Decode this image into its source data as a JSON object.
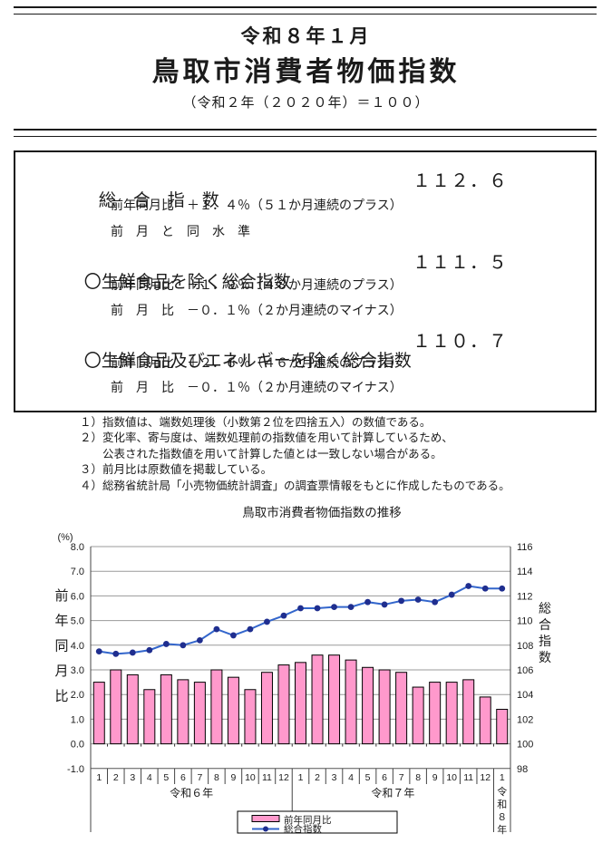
{
  "header": {
    "date_title": "令和８年１月",
    "main_title": "鳥取市消費者物価指数",
    "base_note": "（令和２年（２０２０年）＝１００）"
  },
  "summary": {
    "items": [
      {
        "name": "総　合　指　数",
        "value": "１１２．６",
        "lines": [
          "前年同月比　＋１．４％（５１か月連続のプラス）",
          "前　月　と　同　水　準"
        ]
      },
      {
        "name": "〇生鮮食品を除く総合指数",
        "value": "１１１．５",
        "lines": [
          "前年同月比　＋１．９％（４８か月連続のプラス）",
          "前　月　比　－０．１％（２か月連続のマイナス）"
        ]
      },
      {
        "name": "〇生鮮食品及びエネルギーを除く総合指数",
        "value": "１１０．７",
        "lines": [
          "前年同月比　＋２．６％（４６か月連続のプラス）",
          "前　月　比　－０．１％（２か月連続のマイナス）"
        ]
      }
    ]
  },
  "notes": [
    "１）指数値は、端数処理後（小数第２位を四捨五入）の数値である。",
    "２）変化率、寄与度は、端数処理前の指数値を用いて計算しているため、",
    "　　公表された指数値を用いて計算した値とは一致しない場合がある。",
    "３）前月比は原数値を掲載している。",
    "４）総務省統計局「小売物価統計調査」の調査票情報をもとに作成したものである。"
  ],
  "chart_data": {
    "type": "bar+line",
    "title": "鳥取市消費者物価指数の推移",
    "unit_label": "(%)",
    "grid": true,
    "legend_position": "bottom-center",
    "groups": [
      {
        "year": "令和６年",
        "months": [
          "1",
          "2",
          "3",
          "4",
          "5",
          "6",
          "7",
          "8",
          "9",
          "10",
          "11",
          "12"
        ]
      },
      {
        "year": "令和７年",
        "months": [
          "1",
          "2",
          "3",
          "4",
          "5",
          "6",
          "7",
          "8",
          "9",
          "10",
          "11",
          "12"
        ]
      },
      {
        "year": "令和８年",
        "months": [
          "1"
        ]
      }
    ],
    "series": [
      {
        "name": "前年同月比",
        "type": "bar",
        "axis": "left",
        "color": "#FF99CC",
        "values": [
          2.5,
          3.0,
          2.8,
          2.2,
          2.8,
          2.6,
          2.5,
          3.0,
          2.7,
          2.2,
          2.9,
          3.2,
          3.3,
          3.6,
          3.6,
          3.4,
          3.1,
          3.0,
          2.9,
          2.3,
          2.5,
          2.5,
          2.6,
          1.9,
          1.4
        ]
      },
      {
        "name": "総合指数",
        "type": "line",
        "axis": "right",
        "color": "#3366CC",
        "marker_color": "#1F2E8F",
        "values": [
          107.5,
          107.3,
          107.4,
          107.6,
          108.1,
          108.0,
          108.4,
          109.3,
          108.8,
          109.3,
          109.9,
          110.4,
          111.0,
          111.0,
          111.1,
          111.1,
          111.5,
          111.3,
          111.6,
          111.7,
          111.5,
          112.1,
          112.8,
          112.6,
          112.6
        ]
      }
    ],
    "left_axis": {
      "label": "前年同月比",
      "min": -1.0,
      "max": 8.0,
      "tick_step": 1.0,
      "ticks": [
        "8.0",
        "7.0",
        "6.0",
        "5.0",
        "4.0",
        "3.0",
        "2.0",
        "1.0",
        "0.0",
        "-1.0"
      ]
    },
    "right_axis": {
      "label": "総合指数",
      "min": 98,
      "max": 116,
      "tick_step": 2,
      "ticks": [
        "116",
        "114",
        "112",
        "110",
        "108",
        "106",
        "104",
        "102",
        "100",
        "98"
      ]
    },
    "legend": [
      "前年同月比",
      "総合指数"
    ]
  }
}
